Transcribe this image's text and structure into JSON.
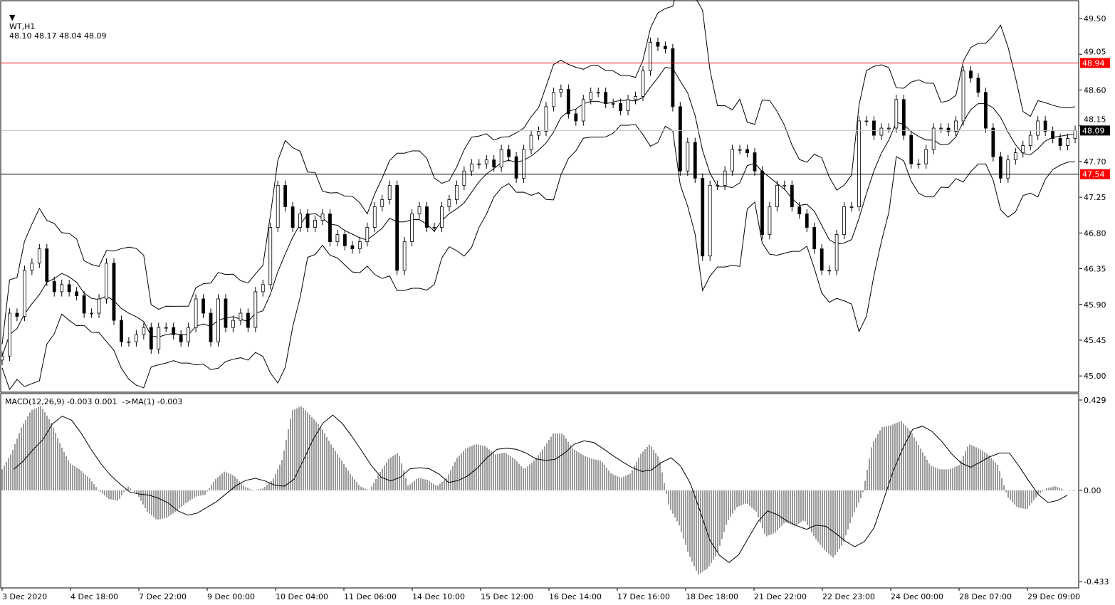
{
  "header": {
    "symbol": "WT,H1",
    "ohlc": "48.10 48.17 48.04 48.09"
  },
  "macd_header": "MACD(12,26,9) -0.003 0.001  ->MA(1) -0.003",
  "colors": {
    "line_red": "#ff0000",
    "label_red": "#ff0000",
    "current_bg": "#000000",
    "candles": "#000000",
    "grid": "#c0c0c0"
  },
  "chart_data": [
    {
      "type": "candlestick",
      "title": "WT,H1",
      "ylim": [
        44.85,
        49.75
      ],
      "price_ticks": [
        "49.50",
        "49.05",
        "48.60",
        "48.15",
        "47.70",
        "47.25",
        "46.80",
        "46.35",
        "45.90",
        "45.45",
        "45.00"
      ],
      "x_ticks": [
        "3 Dec 2020",
        "4 Dec 18:00",
        "7 Dec 22:00",
        "9 Dec 00:00",
        "10 Dec 04:00",
        "11 Dec 06:00",
        "14 Dec 10:00",
        "15 Dec 12:00",
        "16 Dec 14:00",
        "17 Dec 16:00",
        "18 Dec 18:00",
        "21 Dec 22:00",
        "22 Dec 23:00",
        "24 Dec 00:00",
        "28 Dec 07:00",
        "29 Dec 09:00"
      ],
      "closes": [
        45.25,
        45.79,
        45.75,
        46.33,
        46.42,
        46.6,
        46.19,
        46.06,
        46.15,
        46.06,
        46.01,
        45.79,
        45.79,
        45.97,
        46.42,
        45.7,
        45.43,
        45.43,
        45.52,
        45.61,
        45.34,
        45.61,
        45.61,
        45.52,
        45.43,
        45.61,
        45.97,
        45.79,
        45.43,
        45.97,
        45.61,
        45.7,
        45.79,
        45.61,
        46.06,
        46.15,
        46.87,
        47.4,
        47.13,
        46.87,
        47.04,
        46.87,
        46.96,
        47.04,
        46.69,
        46.78,
        46.64,
        46.6,
        46.69,
        46.87,
        47.13,
        47.22,
        47.4,
        46.33,
        46.69,
        47.04,
        47.13,
        46.87,
        46.87,
        47.13,
        47.22,
        47.4,
        47.58,
        47.67,
        47.67,
        47.72,
        47.63,
        47.85,
        47.76,
        47.49,
        47.85,
        48.03,
        48.08,
        48.39,
        48.57,
        48.61,
        48.3,
        48.21,
        48.48,
        48.57,
        48.57,
        48.43,
        48.43,
        48.34,
        48.48,
        48.52,
        48.84,
        49.2,
        49.15,
        49.12,
        48.39,
        47.58,
        47.94,
        47.49,
        46.51,
        47.4,
        47.4,
        47.58,
        47.85,
        47.85,
        47.81,
        47.58,
        46.78,
        47.13,
        47.4,
        47.4,
        47.13,
        47.04,
        46.87,
        46.6,
        46.33,
        46.33,
        46.78,
        47.13,
        47.13,
        48.21,
        48.21,
        48.03,
        48.12,
        48.12,
        48.48,
        48.03,
        47.67,
        47.67,
        47.85,
        48.12,
        48.12,
        48.08,
        48.21,
        48.84,
        48.75,
        48.57,
        48.12,
        47.76,
        47.49,
        47.72,
        47.81,
        47.9,
        48.03,
        48.21,
        48.08,
        47.99,
        47.9,
        47.99,
        48.09
      ],
      "horizontal_lines": [
        {
          "price": 48.94,
          "label": "48.94",
          "color": "#ff0000"
        },
        {
          "price": 47.54,
          "label": "47.54",
          "color": "#000000",
          "label_color": "#ff0000"
        },
        {
          "price": 48.09,
          "label": "48.09",
          "color": "#c0c0c0",
          "label_color": "#000000"
        }
      ],
      "indicators": [
        "Bollinger Bands"
      ]
    },
    {
      "type": "bar",
      "title": "MACD(12,26,9)",
      "ylim": [
        -0.433,
        0.429
      ],
      "y_ticks": [
        "0.429",
        "0.00",
        "-0.433"
      ],
      "histogram": [
        0.1,
        0.18,
        0.3,
        0.38,
        0.4,
        0.33,
        0.22,
        0.13,
        0.1,
        0.06,
        0.0,
        -0.04,
        -0.05,
        0.02,
        -0.02,
        -0.1,
        -0.14,
        -0.13,
        -0.1,
        -0.06,
        -0.03,
        -0.02,
        0.05,
        0.09,
        0.07,
        0.02,
        0.0,
        0.01,
        0.05,
        0.15,
        0.38,
        0.4,
        0.35,
        0.3,
        0.22,
        0.15,
        0.08,
        0.02,
        0.0,
        0.08,
        0.15,
        0.18,
        0.02,
        0.06,
        0.05,
        0.02,
        0.06,
        0.15,
        0.2,
        0.22,
        0.21,
        0.17,
        0.18,
        0.15,
        0.1,
        0.14,
        0.2,
        0.27,
        0.27,
        0.2,
        0.17,
        0.15,
        0.14,
        0.08,
        0.06,
        0.08,
        0.17,
        0.22,
        0.15,
        -0.08,
        -0.16,
        -0.3,
        -0.4,
        -0.37,
        -0.3,
        -0.15,
        -0.08,
        -0.06,
        -0.1,
        -0.22,
        -0.2,
        -0.15,
        -0.17,
        -0.14,
        -0.22,
        -0.28,
        -0.32,
        -0.25,
        -0.12,
        -0.02,
        0.22,
        0.3,
        0.31,
        0.33,
        0.28,
        0.2,
        0.12,
        0.1,
        0.1,
        0.12,
        0.22,
        0.2,
        0.17,
        0.12,
        -0.03,
        -0.08,
        -0.09,
        -0.03,
        0.01,
        0.02,
        0.0,
        -0.003
      ]
    }
  ]
}
